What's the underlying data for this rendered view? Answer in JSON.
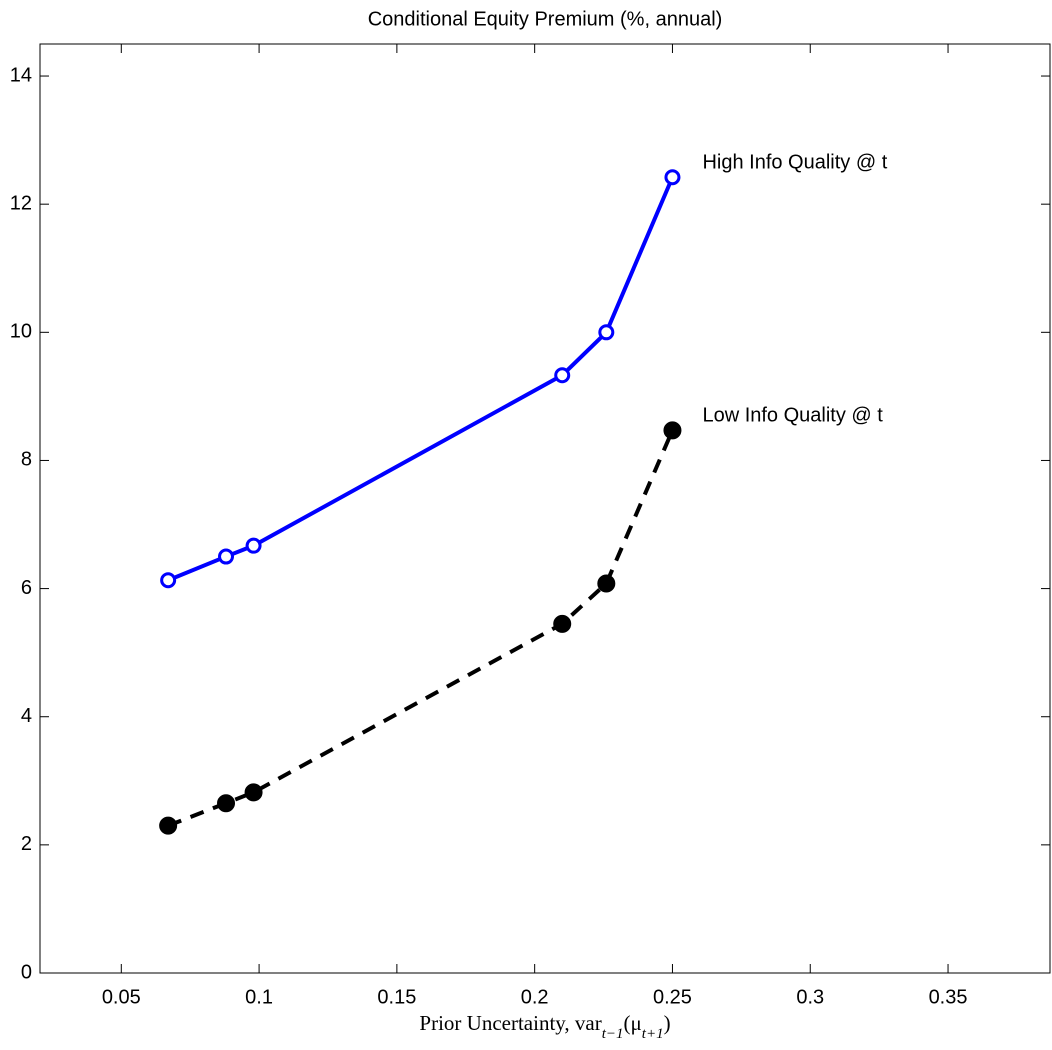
{
  "chart_data": {
    "type": "line",
    "title": "Conditional Equity Premium (%, annual)",
    "xlabel": "Prior Uncertainty, var_{t−1}(μ_{t+1})",
    "x": [
      0.067,
      0.088,
      0.098,
      0.21,
      0.226,
      0.25
    ],
    "series": [
      {
        "name": "High Info Quality @ t",
        "color": "#0000ff",
        "dash": false,
        "marker": "open-circle",
        "values": [
          6.13,
          6.5,
          6.67,
          9.33,
          10.0,
          12.42
        ]
      },
      {
        "name": "Low Info Quality @ t",
        "color": "#000000",
        "dash": true,
        "marker": "filled-circle",
        "values": [
          2.3,
          2.65,
          2.82,
          5.45,
          6.08,
          8.47
        ]
      }
    ],
    "xlim": [
      0.0205,
      0.387
    ],
    "ylim": [
      0,
      14.5
    ],
    "xticks": [
      0.05,
      0.1,
      0.15,
      0.2,
      0.25,
      0.3,
      0.35
    ],
    "yticks": [
      0,
      2,
      4,
      6,
      8,
      10,
      12,
      14
    ],
    "grid": false
  }
}
